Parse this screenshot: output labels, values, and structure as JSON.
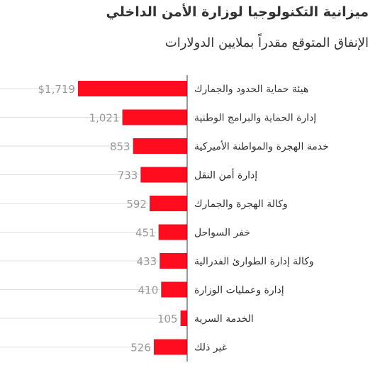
{
  "chart_data": {
    "type": "bar",
    "orientation": "horizontal",
    "title": "ميزانية التكنولوجيا لوزارة الأمن الداخلي",
    "subtitle": "الإنفاق المتوقع مقدراً بملايين الدولارات",
    "categories": [
      "هيئة حماية الحدود والجمارك",
      "إدارة الحماية والبرامج الوطنية",
      "خدمة الهجرة والمواطنة الأميركية",
      "إدارة أمن النقل",
      "وكالة الهجرة والجمارك",
      "خفر السواحل",
      "وكالة إدارة الطوارئ الفدرالية",
      "إدارة وعمليات الوزارة",
      "الخدمة السرية",
      "غير ذلك"
    ],
    "values": [
      1719,
      1021,
      853,
      733,
      592,
      451,
      433,
      410,
      105,
      526
    ],
    "value_labels": [
      "$1,719",
      "1,021",
      "853",
      "733",
      "592",
      "451",
      "433",
      "410",
      "105",
      "526"
    ],
    "xlim": [
      0,
      1719
    ],
    "grid": true,
    "legend": "none",
    "colors": {
      "bar": "#ff0d1e",
      "label": "#999999",
      "category": "#333333",
      "grid": "#dddddd"
    }
  }
}
